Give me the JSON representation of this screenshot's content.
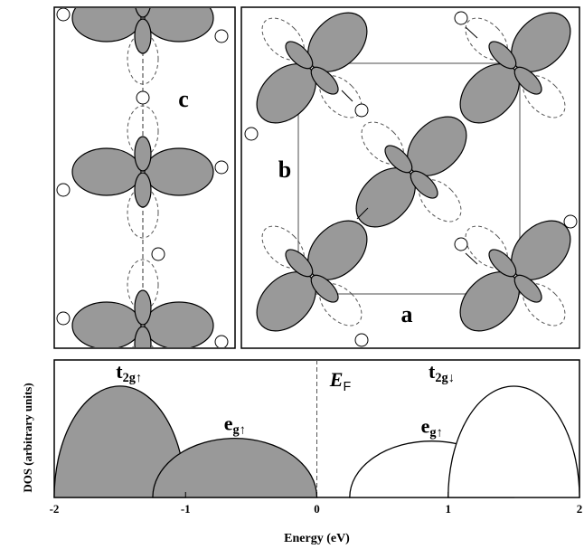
{
  "panels": {
    "labels": [
      "c",
      "b",
      "a"
    ]
  },
  "chart_data": {
    "type": "dos",
    "xlabel": "Energy (eV)",
    "ylabel": "DOS (arbitrary units)",
    "xlim": [
      -2,
      2
    ],
    "xticks": [
      -2,
      -1,
      0,
      1,
      2
    ],
    "ylim": [
      0,
      1
    ],
    "fermi": {
      "x": 0,
      "label": {
        "base": "E",
        "sub": "F"
      }
    },
    "bands": [
      {
        "label": {
          "base": "t",
          "sub": "2g↑"
        },
        "xrange": [
          -2,
          -1
        ],
        "peak": 0.81,
        "filled": true,
        "color": "#999999"
      },
      {
        "label": {
          "base": "e",
          "sub": "g↑"
        },
        "xrange": [
          -1.25,
          0
        ],
        "peak": 0.43,
        "filled": true,
        "color": "#999999"
      },
      {
        "label": {
          "base": "e",
          "sub": "g↑"
        },
        "xrange": [
          0.25,
          1.5
        ],
        "peak": 0.41,
        "filled": false,
        "color": "#ffffff"
      },
      {
        "label": {
          "base": "t",
          "sub": "2g↓"
        },
        "xrange": [
          1,
          2
        ],
        "peak": 0.81,
        "filled": false,
        "color": "#ffffff"
      }
    ]
  }
}
